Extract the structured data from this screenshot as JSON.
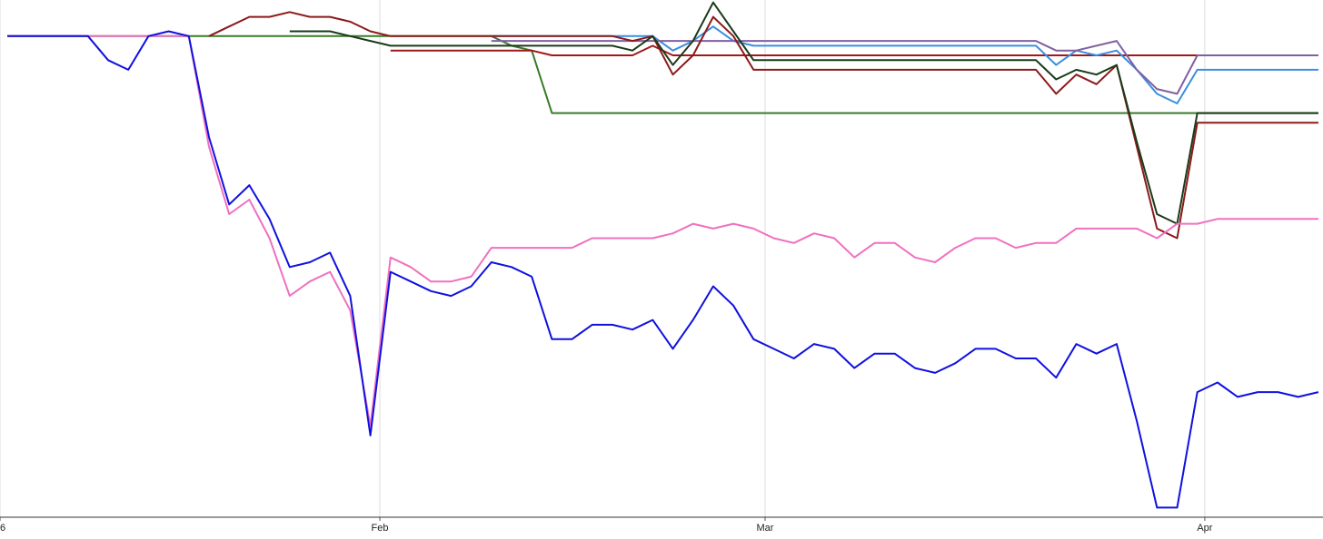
{
  "chart_data": {
    "type": "line",
    "x": [
      0,
      1,
      2,
      3,
      4,
      5,
      6,
      7,
      8,
      9,
      10,
      11,
      12,
      13,
      14,
      15,
      16,
      17,
      18,
      19,
      20,
      21,
      22,
      23,
      24,
      25,
      26,
      27,
      28,
      29,
      30,
      31,
      32,
      33,
      34,
      35,
      36,
      37,
      38,
      39,
      40,
      41,
      42,
      43,
      44,
      45,
      46,
      47,
      48,
      49,
      50,
      51,
      52,
      53,
      54,
      55,
      56,
      57,
      58,
      59,
      60,
      61,
      62,
      63,
      64,
      65
    ],
    "xlim": [
      -0.36,
      65.23
    ],
    "xticks": [
      {
        "value": -0.36,
        "label": "6"
      },
      {
        "value": 18.47,
        "label": "Feb"
      },
      {
        "value": 37.57,
        "label": "Mar"
      },
      {
        "value": 59.37,
        "label": "Apr"
      }
    ],
    "ylim": [
      0,
      107.5
    ],
    "grid": true,
    "series": [
      {
        "color": "#3a7a2a",
        "values": [
          100,
          100,
          100,
          100,
          100,
          100,
          100,
          100,
          100,
          100,
          100,
          100,
          100,
          100,
          100,
          100,
          100,
          100,
          100,
          100,
          100,
          100,
          100,
          100,
          100,
          98,
          97,
          84,
          84,
          84,
          84,
          84,
          84,
          84,
          84,
          84,
          84,
          84,
          84,
          84,
          84,
          84,
          84,
          84,
          84,
          84,
          84,
          84,
          84,
          84,
          84,
          84,
          84,
          84,
          84,
          84,
          84,
          84,
          84,
          84,
          84,
          84,
          84,
          84,
          84,
          84
        ]
      },
      {
        "color": "#a01818",
        "values": [
          null,
          null,
          null,
          null,
          null,
          null,
          null,
          null,
          null,
          null,
          null,
          null,
          null,
          null,
          null,
          null,
          null,
          null,
          null,
          97,
          97,
          97,
          97,
          97,
          97,
          97,
          97,
          96,
          96,
          96,
          96,
          96,
          98,
          96,
          96,
          96,
          96,
          96,
          96,
          96,
          96,
          96,
          96,
          96,
          96,
          96,
          96,
          96,
          96,
          96,
          96,
          96,
          96,
          96,
          96,
          96,
          96,
          96,
          96,
          96,
          96,
          96,
          96,
          96,
          96,
          96
        ]
      },
      {
        "color": "#3b8ee0",
        "values": [
          null,
          null,
          null,
          null,
          null,
          null,
          null,
          null,
          null,
          null,
          null,
          null,
          null,
          null,
          null,
          null,
          null,
          null,
          null,
          null,
          null,
          null,
          null,
          null,
          100,
          100,
          100,
          100,
          100,
          100,
          100,
          100,
          100,
          97,
          99,
          102,
          99,
          98,
          98,
          98,
          98,
          98,
          98,
          98,
          98,
          98,
          98,
          98,
          98,
          98,
          98,
          98,
          94,
          97,
          96,
          97,
          93,
          88,
          86,
          93,
          93,
          93,
          93,
          93,
          93,
          93
        ]
      },
      {
        "color": "#8060a0",
        "values": [
          null,
          null,
          null,
          null,
          null,
          null,
          null,
          null,
          null,
          null,
          null,
          null,
          null,
          null,
          null,
          null,
          null,
          null,
          null,
          null,
          null,
          null,
          null,
          null,
          99,
          99,
          99,
          99,
          99,
          99,
          99,
          99,
          99,
          99,
          99,
          99,
          99,
          99,
          99,
          99,
          99,
          99,
          99,
          99,
          99,
          99,
          99,
          99,
          99,
          99,
          99,
          99,
          97,
          97,
          98,
          99,
          93,
          89,
          88,
          96,
          96,
          96,
          96,
          96,
          96,
          96
        ]
      },
      {
        "color": "#8b1a1a",
        "values": [
          null,
          null,
          null,
          null,
          null,
          null,
          null,
          null,
          null,
          null,
          100,
          102,
          104,
          104,
          105,
          104,
          104,
          103,
          101,
          100,
          100,
          100,
          100,
          100,
          100,
          100,
          100,
          100,
          100,
          100,
          100,
          99,
          100,
          92,
          96,
          104,
          100,
          93,
          93,
          93,
          93,
          93,
          93,
          93,
          93,
          93,
          93,
          93,
          93,
          93,
          93,
          93,
          88,
          92,
          90,
          94,
          77,
          60,
          58,
          82,
          82,
          82,
          82,
          82,
          82,
          82
        ]
      },
      {
        "color": "#1a3a1a",
        "values": [
          null,
          null,
          null,
          null,
          null,
          null,
          null,
          null,
          null,
          null,
          null,
          null,
          null,
          null,
          101,
          101,
          101,
          100,
          99,
          98,
          98,
          98,
          98,
          98,
          98,
          98,
          98,
          98,
          98,
          98,
          98,
          97,
          100,
          94,
          99,
          107,
          101,
          95,
          95,
          95,
          95,
          95,
          95,
          95,
          95,
          95,
          95,
          95,
          95,
          95,
          95,
          95,
          91,
          93,
          92,
          94,
          78,
          63,
          61,
          84,
          84,
          84,
          84,
          84,
          84,
          84
        ]
      },
      {
        "color": "#f070c0",
        "values": [
          100,
          100,
          100,
          100,
          100,
          100,
          100,
          100,
          100,
          100,
          77,
          63,
          66,
          58,
          46,
          49,
          51,
          43,
          19,
          54,
          52,
          49,
          49,
          50,
          56,
          56,
          56,
          56,
          56,
          58,
          58,
          58,
          58,
          59,
          61,
          60,
          61,
          60,
          58,
          57,
          59,
          58,
          54,
          57,
          57,
          54,
          53,
          56,
          58,
          58,
          56,
          57,
          57,
          60,
          60,
          60,
          60,
          58,
          61,
          61,
          62,
          62,
          62,
          62,
          62,
          62
        ]
      },
      {
        "color": "#1010e0",
        "values": [
          100,
          100,
          100,
          100,
          100,
          95,
          93,
          100,
          101,
          100,
          79,
          65,
          69,
          62,
          52,
          53,
          55,
          46,
          17,
          51,
          49,
          47,
          46,
          48,
          53,
          52,
          50,
          37,
          37,
          40,
          40,
          39,
          41,
          35,
          41,
          48,
          44,
          37,
          35,
          33,
          36,
          35,
          31,
          34,
          34,
          31,
          30,
          32,
          35,
          35,
          33,
          33,
          29,
          36,
          34,
          36,
          20,
          2,
          2,
          26,
          28,
          25,
          26,
          26,
          25,
          26
        ]
      }
    ]
  }
}
